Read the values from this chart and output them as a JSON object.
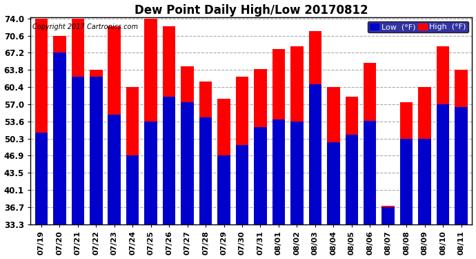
{
  "title": "Dew Point Daily High/Low 20170812",
  "copyright": "Copyright 2017 Cartronics.com",
  "dates": [
    "07/19",
    "07/20",
    "07/21",
    "07/22",
    "07/23",
    "07/24",
    "07/25",
    "07/26",
    "07/27",
    "07/28",
    "07/29",
    "07/30",
    "07/31",
    "08/01",
    "08/02",
    "08/03",
    "08/04",
    "08/05",
    "08/06",
    "08/07",
    "08/08",
    "08/09",
    "08/10",
    "08/11"
  ],
  "high": [
    74.0,
    70.6,
    74.0,
    63.8,
    72.5,
    60.4,
    74.0,
    72.5,
    64.5,
    61.5,
    58.2,
    62.5,
    64.0,
    68.0,
    68.5,
    71.5,
    60.4,
    58.5,
    65.2,
    37.0,
    57.5,
    60.4,
    68.5,
    63.8
  ],
  "low": [
    51.5,
    67.2,
    62.5,
    62.5,
    55.0,
    47.0,
    53.6,
    58.5,
    57.5,
    54.5,
    47.0,
    49.0,
    52.5,
    54.0,
    53.6,
    61.0,
    49.5,
    51.0,
    53.8,
    36.7,
    50.3,
    50.3,
    57.0,
    56.5
  ],
  "bar_color_high": "#FF0000",
  "bar_color_low": "#0000CC",
  "background_color": "#FFFFFF",
  "plot_bg_color": "#FFFFFF",
  "grid_color": "#AAAAAA",
  "ymin": 33.3,
  "ymax": 74.0,
  "yticks": [
    33.3,
    36.7,
    40.1,
    43.5,
    46.9,
    50.3,
    53.6,
    57.0,
    60.4,
    63.8,
    67.2,
    70.6,
    74.0
  ],
  "legend_low_label": "Low  (°F)",
  "legend_high_label": "High  (°F)",
  "legend_bg_color": "#00008B",
  "legend_text_color": "#FFFFFF"
}
